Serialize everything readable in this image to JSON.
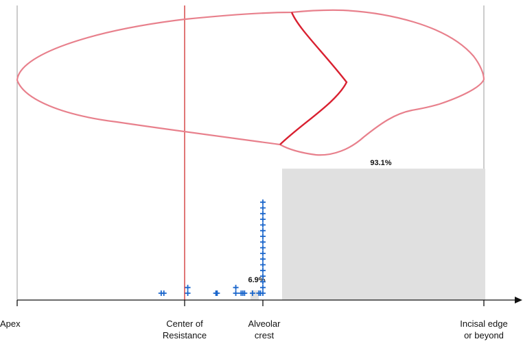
{
  "colors": {
    "tooth_outline": "#e8808c",
    "cej_line": "#d92030",
    "center_line": "#cc1a1a",
    "guide_line": "#999999",
    "bar_fill": "#e0e0e0",
    "marker": "#1a66cc",
    "axis": "#111111"
  },
  "axis": {
    "labels": [
      {
        "id": "apex",
        "text": "Apex"
      },
      {
        "id": "center",
        "text": "Center of\nResistance"
      },
      {
        "id": "alveolar",
        "text": "Alveolar\ncrest"
      },
      {
        "id": "incisal",
        "text": "Incisal edge\nor beyond"
      }
    ]
  },
  "chart_data": {
    "type": "bar",
    "categories": [
      "Apex",
      "Center of Resistance",
      "Alveolar crest",
      "Incisal edge or beyond"
    ],
    "bars": [
      {
        "label": "6.9%",
        "value": 6.9
      },
      {
        "label": "93.1%",
        "value": 93.1
      }
    ],
    "markers": [
      {
        "x": 0.86,
        "stack": 1
      },
      {
        "x": 0.876,
        "stack": 1
      },
      {
        "x": 1.04,
        "stack": 2
      },
      {
        "x": 1.4,
        "stack": 1
      },
      {
        "x": 1.416,
        "stack": 1
      },
      {
        "x": 1.654,
        "stack": 2
      },
      {
        "x": 1.722,
        "stack": 1
      },
      {
        "x": 1.744,
        "stack": 1
      },
      {
        "x": 1.766,
        "stack": 1
      },
      {
        "x": 1.868,
        "stack": 1
      },
      {
        "x": 1.95,
        "stack": 1
      },
      {
        "x": 1.97,
        "stack": 1
      },
      {
        "x": 2.0,
        "stack": 17
      }
    ]
  }
}
